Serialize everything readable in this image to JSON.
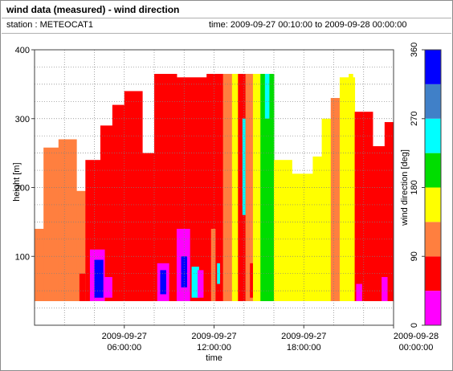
{
  "header": {
    "title": "wind data (measured) - wind direction",
    "station": "station : METEOCAT1",
    "time": "time: 2009-09-27 00:10:00 to 2009-09-28 00:00:00"
  },
  "chart_data": {
    "type": "heatmap",
    "title": "wind data (measured) - wind direction",
    "xlabel": "time",
    "ylabel": "height [m]",
    "colorbar_label": "wind direction [deg]",
    "x_range_hours": [
      0,
      24
    ],
    "x_range": [
      "2009-09-27 00:00:00",
      "2009-09-28 00:00:00"
    ],
    "ylim": [
      0,
      400
    ],
    "yticks": [
      100,
      200,
      300,
      400
    ],
    "ytick_labels": [
      "100",
      "200",
      "300",
      "400"
    ],
    "xticks": [
      {
        "hour": 6,
        "line1": "2009-09-27",
        "line2": "06:00:00"
      },
      {
        "hour": 12,
        "line1": "2009-09-27",
        "line2": "12:00:00"
      },
      {
        "hour": 18,
        "line1": "2009-09-27",
        "line2": "18:00:00"
      },
      {
        "hour": 24,
        "line1": "2009-09-28",
        "line2": "00:00:00"
      }
    ],
    "grid": true,
    "colorbar": {
      "range": [
        0,
        360
      ],
      "ticks": [
        "0",
        "90",
        "180",
        "270",
        "360"
      ],
      "bins": [
        {
          "from": 0,
          "to": 45,
          "color": "#ff00ff"
        },
        {
          "from": 45,
          "to": 90,
          "color": "#ff0000"
        },
        {
          "from": 90,
          "to": 135,
          "color": "#ff7f3f"
        },
        {
          "from": 135,
          "to": 180,
          "color": "#ffff00"
        },
        {
          "from": 180,
          "to": 225,
          "color": "#00dd00"
        },
        {
          "from": 225,
          "to": 270,
          "color": "#00ffff"
        },
        {
          "from": 270,
          "to": 315,
          "color": "#4080c8"
        },
        {
          "from": 315,
          "to": 360,
          "color": "#0000ff"
        }
      ]
    },
    "min_height": 35,
    "segments": [
      {
        "t0": 0.0,
        "t1": 0.6,
        "dir": 112,
        "top": 140
      },
      {
        "t0": 0.6,
        "t1": 1.6,
        "dir": 112,
        "top": 258
      },
      {
        "t0": 1.6,
        "t1": 2.8,
        "dir": 112,
        "top": 270
      },
      {
        "t0": 2.8,
        "t1": 3.4,
        "dir": 112,
        "top": 195
      },
      {
        "t0": 3.4,
        "t1": 4.4,
        "dir": 70,
        "top": 240
      },
      {
        "t0": 4.4,
        "t1": 5.2,
        "dir": 70,
        "top": 290
      },
      {
        "t0": 5.2,
        "t1": 6.0,
        "dir": 70,
        "top": 320
      },
      {
        "t0": 6.0,
        "t1": 7.2,
        "dir": 70,
        "top": 340
      },
      {
        "t0": 7.2,
        "t1": 8.0,
        "dir": 70,
        "top": 250
      },
      {
        "t0": 8.0,
        "t1": 9.5,
        "dir": 70,
        "top": 365
      },
      {
        "t0": 9.5,
        "t1": 11.5,
        "dir": 70,
        "top": 360
      },
      {
        "t0": 11.5,
        "t1": 12.6,
        "dir": 70,
        "top": 365
      },
      {
        "t0": 12.6,
        "t1": 13.2,
        "dir": 112,
        "top": 365
      },
      {
        "t0": 13.2,
        "t1": 13.6,
        "dir": 160,
        "top": 365
      },
      {
        "t0": 13.6,
        "t1": 14.1,
        "dir": 70,
        "top": 365
      },
      {
        "t0": 14.1,
        "t1": 14.6,
        "dir": 112,
        "top": 365
      },
      {
        "t0": 14.6,
        "t1": 15.1,
        "dir": 160,
        "top": 365
      },
      {
        "t0": 15.1,
        "t1": 16.0,
        "dir": 200,
        "top": 365
      },
      {
        "t0": 16.0,
        "t1": 17.2,
        "dir": 160,
        "top": 240
      },
      {
        "t0": 17.2,
        "t1": 18.6,
        "dir": 160,
        "top": 220
      },
      {
        "t0": 18.6,
        "t1": 19.2,
        "dir": 160,
        "top": 245
      },
      {
        "t0": 19.2,
        "t1": 19.8,
        "dir": 160,
        "top": 300
      },
      {
        "t0": 19.8,
        "t1": 20.4,
        "dir": 112,
        "top": 330
      },
      {
        "t0": 20.4,
        "t1": 21.4,
        "dir": 160,
        "top": 360
      },
      {
        "t0": 21.4,
        "t1": 22.6,
        "dir": 70,
        "top": 310
      },
      {
        "t0": 22.6,
        "t1": 23.4,
        "dir": 70,
        "top": 260
      },
      {
        "t0": 23.4,
        "t1": 24.0,
        "dir": 70,
        "top": 295
      }
    ],
    "patches": [
      {
        "t0": 3.0,
        "t1": 3.4,
        "dir": 70,
        "lo": 35,
        "hi": 75
      },
      {
        "t0": 3.7,
        "t1": 4.7,
        "dir": 20,
        "lo": 35,
        "hi": 110
      },
      {
        "t0": 4.0,
        "t1": 4.6,
        "dir": 330,
        "lo": 40,
        "hi": 95
      },
      {
        "t0": 4.7,
        "t1": 5.2,
        "dir": 20,
        "lo": 40,
        "hi": 70
      },
      {
        "t0": 8.2,
        "t1": 9.0,
        "dir": 20,
        "lo": 35,
        "hi": 90
      },
      {
        "t0": 8.4,
        "t1": 8.8,
        "dir": 330,
        "lo": 45,
        "hi": 80
      },
      {
        "t0": 9.5,
        "t1": 10.4,
        "dir": 20,
        "lo": 35,
        "hi": 140
      },
      {
        "t0": 9.8,
        "t1": 10.2,
        "dir": 330,
        "lo": 55,
        "hi": 100
      },
      {
        "t0": 10.5,
        "t1": 11.0,
        "dir": 250,
        "lo": 40,
        "hi": 85
      },
      {
        "t0": 10.9,
        "t1": 11.3,
        "dir": 20,
        "lo": 40,
        "hi": 80
      },
      {
        "t0": 11.8,
        "t1": 12.1,
        "dir": 112,
        "lo": 35,
        "hi": 140
      },
      {
        "t0": 12.2,
        "t1": 12.4,
        "dir": 250,
        "lo": 60,
        "hi": 90
      },
      {
        "t0": 13.9,
        "t1": 14.1,
        "dir": 250,
        "lo": 160,
        "hi": 300
      },
      {
        "t0": 14.4,
        "t1": 14.6,
        "dir": 70,
        "lo": 40,
        "hi": 90
      },
      {
        "t0": 15.4,
        "t1": 15.7,
        "dir": 250,
        "lo": 300,
        "hi": 365
      },
      {
        "t0": 21.0,
        "t1": 21.3,
        "dir": 160,
        "lo": 330,
        "hi": 365
      },
      {
        "t0": 21.5,
        "t1": 21.9,
        "dir": 20,
        "lo": 35,
        "hi": 60
      },
      {
        "t0": 23.2,
        "t1": 23.6,
        "dir": 20,
        "lo": 35,
        "hi": 70
      }
    ]
  }
}
